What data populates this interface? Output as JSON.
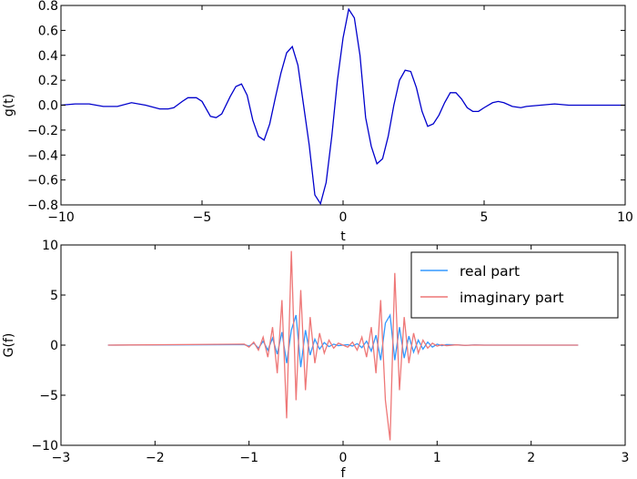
{
  "chart_data": [
    {
      "type": "line",
      "xlabel": "t",
      "ylabel": "g(t)",
      "xlim": [
        -10,
        10
      ],
      "ylim": [
        -0.8,
        0.8
      ],
      "xticks": [
        -10,
        -5,
        0,
        5,
        10
      ],
      "xtick_labels": [
        "−10",
        "−5",
        "0",
        "5",
        "10"
      ],
      "yticks": [
        -0.8,
        -0.6,
        -0.4,
        -0.2,
        0.0,
        0.2,
        0.4,
        0.6,
        0.8
      ],
      "ytick_labels": [
        "−0.8",
        "−0.6",
        "−0.4",
        "−0.2",
        "0.0",
        "0.2",
        "0.4",
        "0.6",
        "0.8"
      ],
      "grid": false,
      "legend": null,
      "series": [
        {
          "color": "#0000cc",
          "x": [
            -10,
            -9.5,
            -9,
            -8.5,
            -8,
            -7.5,
            -7,
            -6.5,
            -6.2,
            -6,
            -5.7,
            -5.5,
            -5.2,
            -5,
            -4.7,
            -4.5,
            -4.3,
            -4,
            -3.8,
            -3.6,
            -3.4,
            -3.2,
            -3,
            -2.8,
            -2.6,
            -2.4,
            -2.2,
            -2,
            -1.8,
            -1.6,
            -1.4,
            -1.2,
            -1,
            -0.8,
            -0.6,
            -0.4,
            -0.2,
            0,
            0.2,
            0.4,
            0.6,
            0.8,
            1,
            1.2,
            1.4,
            1.6,
            1.8,
            2,
            2.2,
            2.4,
            2.6,
            2.8,
            3,
            3.2,
            3.4,
            3.6,
            3.8,
            4,
            4.2,
            4.4,
            4.6,
            4.8,
            5,
            5.3,
            5.5,
            5.7,
            6,
            6.3,
            6.5,
            7,
            7.5,
            8,
            8.5,
            9,
            9.5,
            10
          ],
          "y": [
            0.0,
            0.01,
            0.01,
            -0.01,
            -0.01,
            0.02,
            0.0,
            -0.03,
            -0.03,
            -0.02,
            0.03,
            0.06,
            0.06,
            0.03,
            -0.09,
            -0.1,
            -0.07,
            0.07,
            0.15,
            0.17,
            0.08,
            -0.12,
            -0.25,
            -0.28,
            -0.15,
            0.06,
            0.26,
            0.42,
            0.47,
            0.32,
            0.0,
            -0.32,
            -0.72,
            -0.79,
            -0.62,
            -0.25,
            0.2,
            0.54,
            0.77,
            0.7,
            0.4,
            -0.1,
            -0.33,
            -0.47,
            -0.43,
            -0.25,
            0.0,
            0.2,
            0.28,
            0.27,
            0.14,
            -0.05,
            -0.17,
            -0.15,
            -0.08,
            0.02,
            0.1,
            0.1,
            0.05,
            -0.02,
            -0.05,
            -0.05,
            -0.02,
            0.02,
            0.03,
            0.02,
            -0.01,
            -0.02,
            -0.01,
            0.0,
            0.01,
            0.0,
            0.0,
            0.0,
            0.0,
            0.0
          ]
        }
      ]
    },
    {
      "type": "line",
      "xlabel": "f",
      "ylabel": "G(f)",
      "xlim": [
        -3,
        3
      ],
      "ylim": [
        -10,
        10
      ],
      "xticks": [
        -3,
        -2,
        -1,
        0,
        1,
        2,
        3
      ],
      "xtick_labels": [
        "−3",
        "−2",
        "−1",
        "0",
        "1",
        "2",
        "3"
      ],
      "yticks": [
        -10,
        -5,
        0,
        5,
        10
      ],
      "ytick_labels": [
        "−10",
        "−5",
        "0",
        "5",
        "10"
      ],
      "grid": false,
      "legend": "top-right",
      "series": [
        {
          "name": "real part",
          "color": "#3399ff",
          "x": [
            -2.5,
            -1.05,
            -1.0,
            -0.95,
            -0.9,
            -0.85,
            -0.8,
            -0.75,
            -0.7,
            -0.65,
            -0.6,
            -0.55,
            -0.5,
            -0.45,
            -0.4,
            -0.35,
            -0.3,
            -0.25,
            -0.2,
            -0.15,
            -0.1,
            -0.05,
            0.0,
            0.05,
            0.1,
            0.15,
            0.2,
            0.25,
            0.3,
            0.35,
            0.4,
            0.45,
            0.5,
            0.55,
            0.6,
            0.65,
            0.7,
            0.75,
            0.8,
            0.85,
            0.9,
            0.95,
            1.0,
            1.05,
            1.1,
            1.2,
            1.3,
            1.4,
            1.5,
            1.6,
            2.5
          ],
          "y": [
            0,
            0.05,
            -0.1,
            0.2,
            -0.3,
            0.4,
            -0.5,
            0.7,
            -0.9,
            1.3,
            -1.8,
            1.5,
            3.0,
            -2.2,
            1.5,
            -1.0,
            0.6,
            -0.4,
            0.25,
            -0.15,
            0.1,
            -0.05,
            0,
            0.05,
            -0.1,
            0.15,
            -0.25,
            0.4,
            -0.6,
            1.0,
            -1.5,
            2.2,
            3.0,
            -1.5,
            1.8,
            -1.3,
            0.9,
            -0.7,
            0.5,
            -0.4,
            0.3,
            -0.2,
            0.1,
            -0.05,
            0.05,
            0.03,
            -0.02,
            0.02,
            0.0,
            0.0,
            0
          ]
        },
        {
          "name": "imaginary part",
          "color": "#ee7777",
          "x": [
            -2.5,
            -1.05,
            -1.0,
            -0.95,
            -0.9,
            -0.85,
            -0.8,
            -0.75,
            -0.7,
            -0.65,
            -0.6,
            -0.55,
            -0.5,
            -0.45,
            -0.4,
            -0.35,
            -0.3,
            -0.25,
            -0.2,
            -0.15,
            -0.1,
            -0.05,
            0.0,
            0.05,
            0.1,
            0.15,
            0.2,
            0.25,
            0.3,
            0.35,
            0.4,
            0.45,
            0.5,
            0.55,
            0.6,
            0.65,
            0.7,
            0.75,
            0.8,
            0.85,
            0.9,
            0.95,
            1.0,
            1.05,
            1.1,
            1.2,
            1.3,
            1.4,
            1.5,
            1.6,
            2.5
          ],
          "y": [
            0,
            0.1,
            -0.2,
            0.3,
            -0.5,
            0.8,
            -1.2,
            1.8,
            -2.8,
            4.5,
            -7.3,
            9.4,
            -5.5,
            5.5,
            -4.5,
            2.8,
            -1.8,
            1.2,
            -0.8,
            0.5,
            -0.3,
            0.2,
            0,
            -0.2,
            0.3,
            -0.5,
            0.8,
            -1.2,
            1.8,
            -2.8,
            4.5,
            -5.5,
            -9.5,
            7.2,
            -4.5,
            2.8,
            -1.8,
            1.2,
            -0.8,
            0.5,
            -0.3,
            0.2,
            -0.1,
            0.05,
            -0.05,
            0.03,
            -0.02,
            0.01,
            0.0,
            0.0,
            0
          ]
        }
      ]
    }
  ]
}
